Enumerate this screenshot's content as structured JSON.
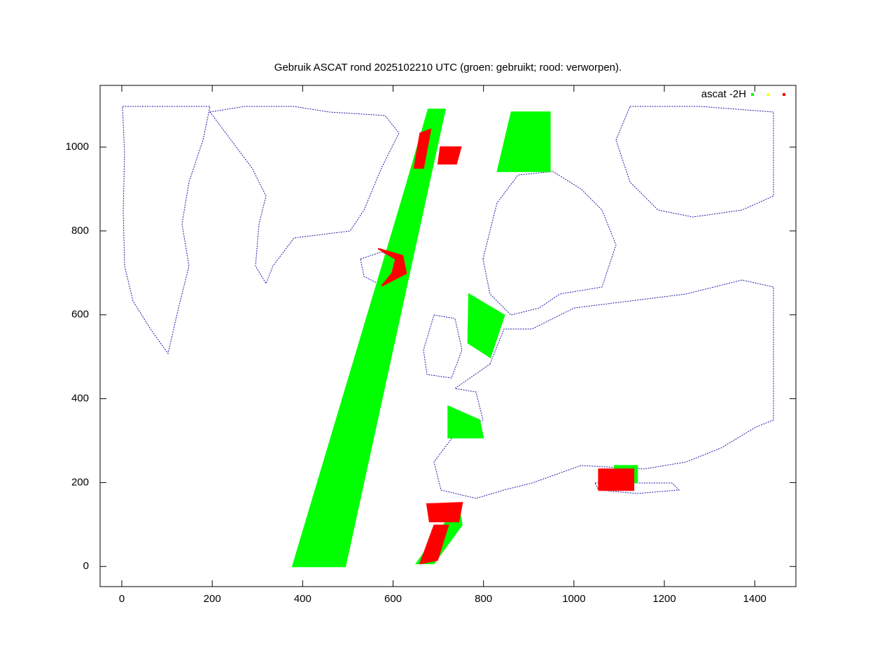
{
  "chart_data": {
    "type": "scatter",
    "title": "Gebruik ASCAT rond 2025102210 UTC (groen: gebruikt; rood: verworpen).",
    "legend": {
      "label": "ascat -2H",
      "colors": [
        "#00ff00",
        "#ffff00",
        "#ff0000"
      ]
    },
    "xlim": [
      -48,
      1491
    ],
    "ylim": [
      -48,
      1147
    ],
    "xticks": [
      0,
      200,
      400,
      600,
      800,
      1000,
      1200,
      1400
    ],
    "yticks": [
      0,
      200,
      400,
      600,
      800,
      1000
    ],
    "series": [
      {
        "color": "#00ff00",
        "x": [
          378,
          494,
          715,
          678,
          627,
          null,
          862,
          947,
          947,
          831,
          null,
          768,
          846,
          815,
          766,
          null,
          722,
          791,
          799,
          722,
          null,
          652,
          745,
          752,
          690,
          null,
          1090,
          1140,
          1140,
          1090
        ],
        "y": [
          0,
          0,
          1090,
          1090,
          900,
          null,
          1083,
          1083,
          942,
          942,
          null,
          649,
          599,
          499,
          533,
          null,
          382,
          349,
          307,
          307,
          null,
          7,
          149,
          99,
          7,
          null,
          240,
          240,
          200,
          200
        ]
      },
      {
        "color": "#ff0000",
        "x": [
          567,
          621,
          629,
          575,
          598,
          606,
          null,
          660,
          683,
          667,
          647,
          null,
          1055,
          1132,
          1132,
          1055,
          null,
          675,
          753,
          745,
          681,
          null,
          691,
          722,
          698,
          660,
          null,
          705,
          750,
          740,
          700
        ],
        "y": [
          758,
          741,
          699,
          669,
          699,
          733,
          null,
          1033,
          1042,
          950,
          950,
          null,
          232,
          232,
          182,
          182,
          null,
          149,
          152,
          107,
          107,
          null,
          98,
          98,
          15,
          7,
          null,
          1000,
          1000,
          960,
          960
        ]
      }
    ]
  }
}
